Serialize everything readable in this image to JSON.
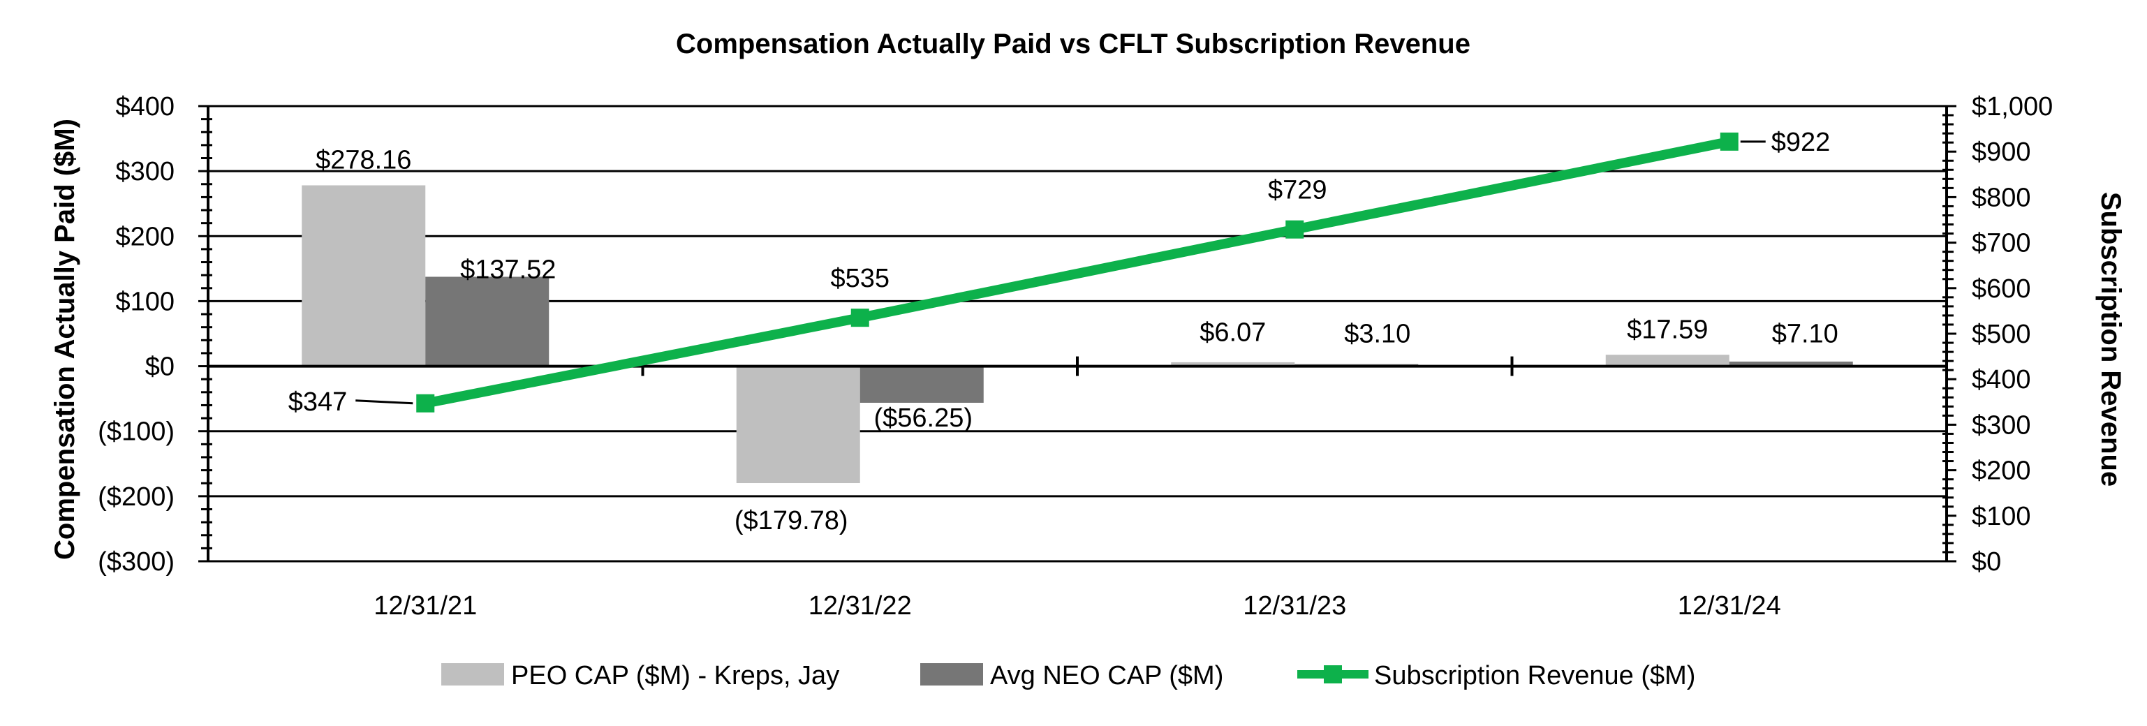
{
  "chart_data": {
    "type": "bar",
    "title": "Compensation Actually Paid vs CFLT Subscription Revenue",
    "categories": [
      "12/31/21",
      "12/31/22",
      "12/31/23",
      "12/31/24"
    ],
    "y_left": {
      "label": "Compensation Actually Paid ($M)",
      "range": [
        -300,
        400
      ],
      "ticks": [
        400,
        300,
        200,
        100,
        0,
        -100,
        -200,
        -300
      ],
      "tick_labels": [
        "$400",
        "$300",
        "$200",
        "$100",
        "$0",
        "($100)",
        "($200)",
        "($300)"
      ]
    },
    "y_right": {
      "label": "Subscription Revenue",
      "range": [
        0,
        1000
      ],
      "ticks": [
        1000,
        900,
        800,
        700,
        600,
        500,
        400,
        300,
        200,
        100,
        0
      ],
      "tick_labels": [
        "$1,000",
        "$900",
        "$800",
        "$700",
        "$600",
        "$500",
        "$400",
        "$300",
        "$200",
        "$100",
        "$0"
      ]
    },
    "series": [
      {
        "name": "PEO CAP ($M) - Kreps, Jay",
        "type": "bar",
        "axis": "left",
        "color": "#bfbfbf",
        "values": [
          278.16,
          -179.78,
          6.07,
          17.59
        ],
        "labels": [
          "$278.16",
          "($179.78)",
          "$6.07",
          "$17.59"
        ]
      },
      {
        "name": "Avg NEO CAP ($M)",
        "type": "bar",
        "axis": "left",
        "color": "#767676",
        "values": [
          137.52,
          -56.25,
          3.1,
          7.1
        ],
        "labels": [
          "$137.52",
          "($56.25)",
          "$3.10",
          "$7.10"
        ]
      },
      {
        "name": "Subscription Revenue ($M)",
        "type": "line",
        "axis": "right",
        "color": "#0db14b",
        "values": [
          347,
          535,
          729,
          922
        ],
        "labels": [
          "$347",
          "$535",
          "$729",
          "$922"
        ]
      }
    ],
    "grid": true,
    "legend_position": "bottom"
  }
}
